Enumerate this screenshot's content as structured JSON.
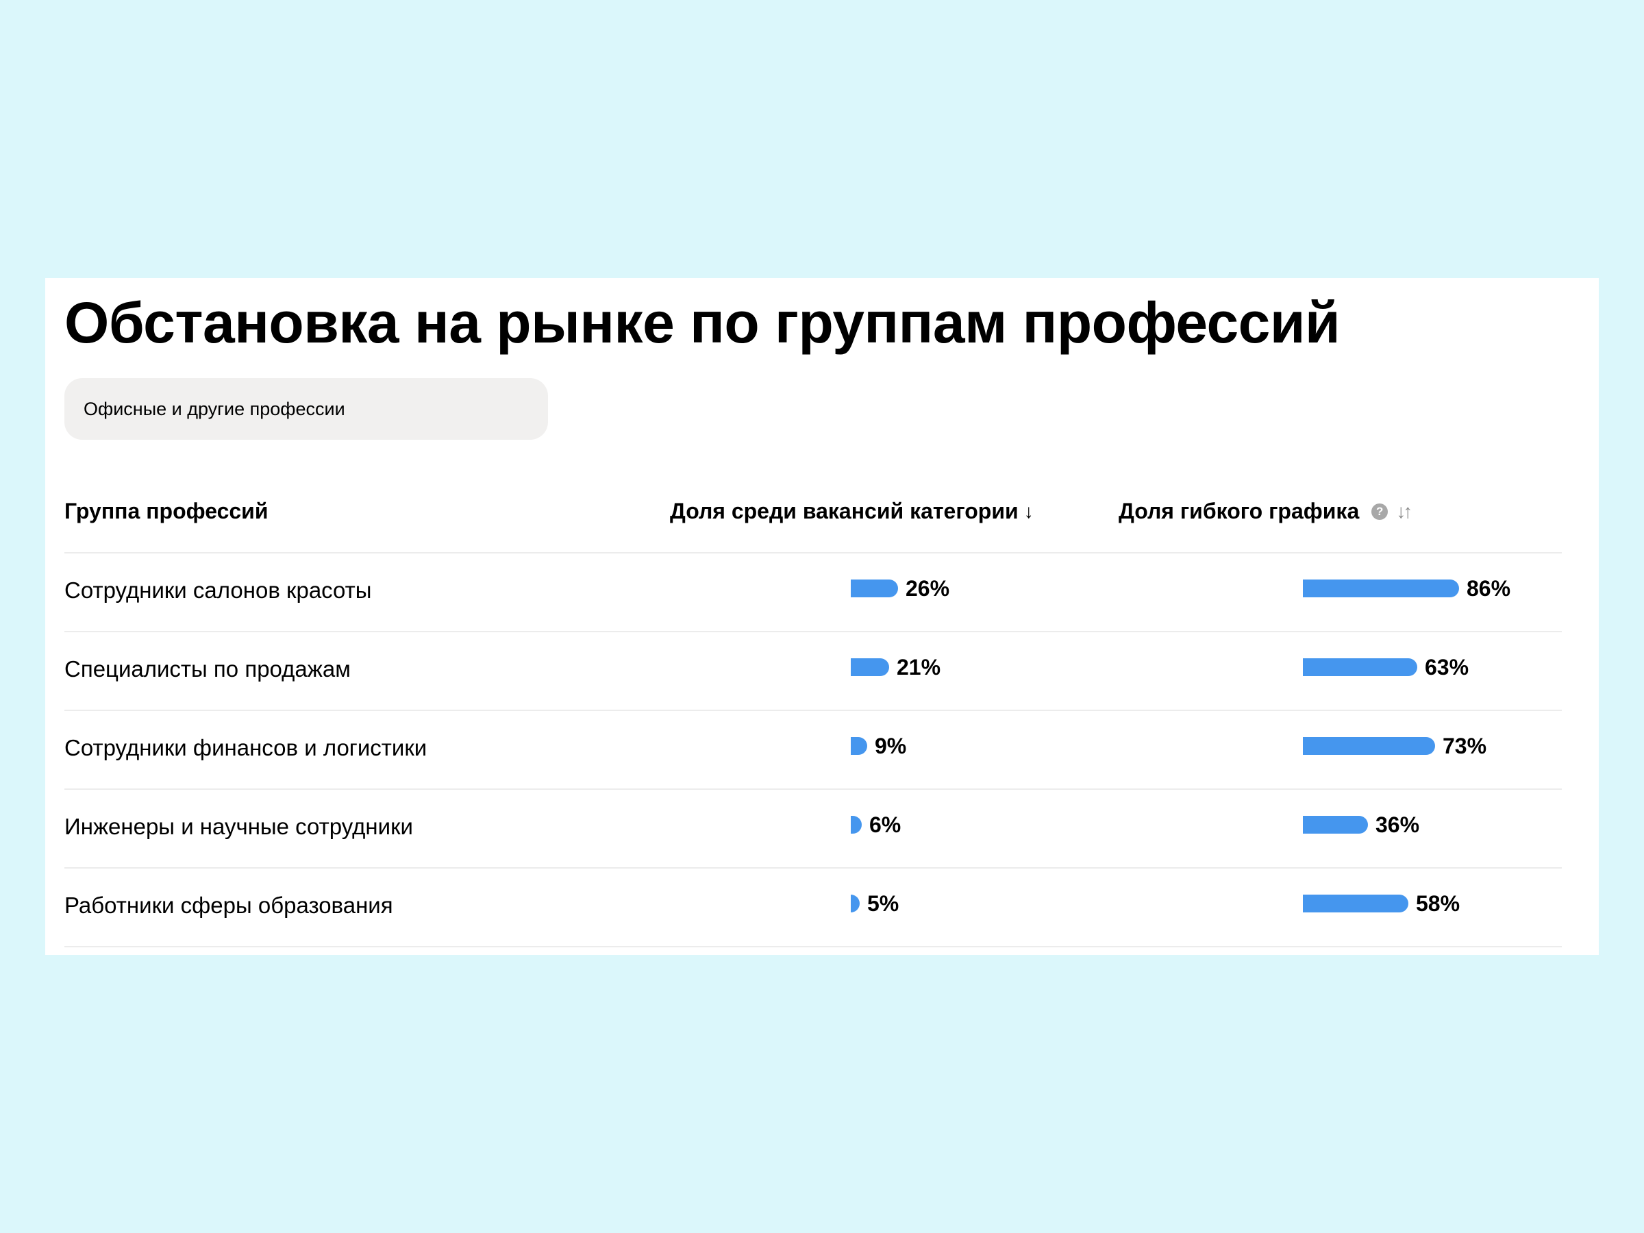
{
  "title": "Обстановка на рынке по группам профессий",
  "filter": {
    "selected": "Офисные и другие профессии"
  },
  "columns": {
    "group": "Группа профессий",
    "share": "Доля среди вакансий категории",
    "share_sort_icon": "↓",
    "flex": "Доля гибкого графика",
    "flex_help_icon": "?",
    "flex_sort_icon": "↓↑"
  },
  "colors": {
    "bar": "#4596ee",
    "background": "#dbf7fb"
  },
  "rows": [
    {
      "label": "Сотрудники салонов красоты",
      "share": 26,
      "share_label": "26%",
      "flex": 86,
      "flex_label": "86%"
    },
    {
      "label": "Специалисты по продажам",
      "share": 21,
      "share_label": "21%",
      "flex": 63,
      "flex_label": "63%"
    },
    {
      "label": "Сотрудники финансов и логистики",
      "share": 9,
      "share_label": "9%",
      "flex": 73,
      "flex_label": "73%"
    },
    {
      "label": "Инженеры и научные сотрудники",
      "share": 6,
      "share_label": "6%",
      "flex": 36,
      "flex_label": "36%"
    },
    {
      "label": "Работники сферы образования",
      "share": 5,
      "share_label": "5%",
      "flex": 58,
      "flex_label": "58%"
    }
  ]
}
